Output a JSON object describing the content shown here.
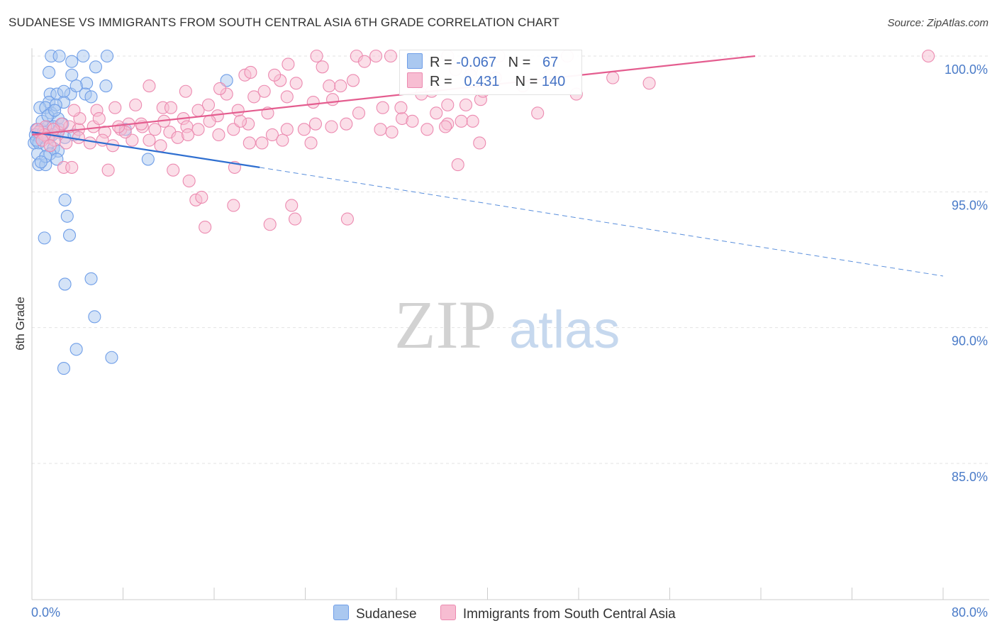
{
  "chart_data": {
    "type": "scatter",
    "title": "SUDANESE VS IMMIGRANTS FROM SOUTH CENTRAL ASIA 6TH GRADE CORRELATION CHART",
    "source": "Source: ZipAtlas.com",
    "ylabel": "6th Grade",
    "xlabel": "",
    "xlim": [
      0,
      80
    ],
    "ylim": [
      80,
      100.8
    ],
    "x_tick_labels": [
      "0.0%",
      "80.0%"
    ],
    "y_tick_labels": [
      "100.0%",
      "95.0%",
      "90.0%",
      "85.0%"
    ],
    "y_ticks": [
      100,
      95,
      90,
      85
    ],
    "grid": true,
    "watermark": "ZIPatlas",
    "legend": {
      "rows": [
        {
          "r_label": "R =",
          "r_value": "-0.067",
          "n_label": "N =",
          "n_value": "67"
        },
        {
          "r_label": "R =",
          "r_value": "0.431",
          "n_label": "N =",
          "n_value": "140"
        }
      ]
    },
    "series": [
      {
        "name": "Sudanese",
        "color": "#6f9ee8",
        "fill": "#aac8f0",
        "trend": {
          "x0": 0,
          "y0": 97.2,
          "x1": 20,
          "y1": 95.9,
          "dash_to_x": 80,
          "dash_to_y": 91.9
        },
        "points": [
          [
            1.7,
            100
          ],
          [
            2.4,
            100
          ],
          [
            4.5,
            100
          ],
          [
            6.6,
            100
          ],
          [
            1.5,
            99.4
          ],
          [
            3.5,
            99.3
          ],
          [
            4.8,
            99
          ],
          [
            6.5,
            98.9
          ],
          [
            17.1,
            99.1
          ],
          [
            1.6,
            98.6
          ],
          [
            2.2,
            98.6
          ],
          [
            3.4,
            98.6
          ],
          [
            4.7,
            98.6
          ],
          [
            5.2,
            98.5
          ],
          [
            1.5,
            98.3
          ],
          [
            2.8,
            98.3
          ],
          [
            0.7,
            98.1
          ],
          [
            1.2,
            98.1
          ],
          [
            1.7,
            97.9
          ],
          [
            2.3,
            97.7
          ],
          [
            0.4,
            97.3
          ],
          [
            0.8,
            97.3
          ],
          [
            1.4,
            97.4
          ],
          [
            1.9,
            97.4
          ],
          [
            2.4,
            97.3
          ],
          [
            0.3,
            97.1
          ],
          [
            0.7,
            97
          ],
          [
            1.1,
            97
          ],
          [
            1.5,
            97
          ],
          [
            0.2,
            96.8
          ],
          [
            0.6,
            96.8
          ],
          [
            1.3,
            96.7
          ],
          [
            1.9,
            96.6
          ],
          [
            2.3,
            96.5
          ],
          [
            0.5,
            96.4
          ],
          [
            1.6,
            96.4
          ],
          [
            2.2,
            96.2
          ],
          [
            0.6,
            96
          ],
          [
            1.2,
            96
          ],
          [
            10.2,
            96.2
          ],
          [
            2.8,
            98.7
          ],
          [
            3.9,
            98.9
          ],
          [
            5.6,
            99.6
          ],
          [
            2.1,
            98.2
          ],
          [
            0.9,
            97.6
          ],
          [
            2.7,
            97.5
          ],
          [
            1.8,
            97.1
          ],
          [
            1,
            97.2
          ],
          [
            0.4,
            96.9
          ],
          [
            1.2,
            96.3
          ],
          [
            2.9,
            97
          ],
          [
            8.2,
            97.3
          ],
          [
            3.7,
            97.1
          ],
          [
            1.4,
            97.8
          ],
          [
            2,
            98
          ],
          [
            2.9,
            94.7
          ],
          [
            3.1,
            94.1
          ],
          [
            3.3,
            93.4
          ],
          [
            1.1,
            93.3
          ],
          [
            2.9,
            91.6
          ],
          [
            5.2,
            91.8
          ],
          [
            5.5,
            90.4
          ],
          [
            3.9,
            89.2
          ],
          [
            7,
            88.9
          ],
          [
            2.8,
            88.5
          ],
          [
            3.5,
            99.8
          ],
          [
            0.8,
            96.1
          ]
        ]
      },
      {
        "name": "Immigrants from South Central Asia",
        "color": "#ec8ab0",
        "fill": "#f7bdd2",
        "trend": {
          "x0": 0,
          "y0": 97.1,
          "x1": 63.5,
          "y1": 100
        },
        "points": [
          [
            25,
            100
          ],
          [
            28.5,
            100
          ],
          [
            31.5,
            100
          ],
          [
            36.5,
            100
          ],
          [
            41,
            100
          ],
          [
            47,
            100
          ],
          [
            78.7,
            100
          ],
          [
            33.5,
            99.5
          ],
          [
            37.2,
            99.5
          ],
          [
            38.6,
            99.5
          ],
          [
            40.7,
            99.2
          ],
          [
            45.5,
            99.3
          ],
          [
            51,
            99.2
          ],
          [
            54.2,
            99
          ],
          [
            18.7,
            99.3
          ],
          [
            21.8,
            99.1
          ],
          [
            23.2,
            99
          ],
          [
            26.1,
            98.9
          ],
          [
            33.7,
            99
          ],
          [
            38.5,
            99.3
          ],
          [
            43.1,
            98.9
          ],
          [
            47.8,
            98.6
          ],
          [
            10.3,
            98.9
          ],
          [
            13.5,
            98.7
          ],
          [
            17.1,
            98.6
          ],
          [
            19.5,
            98.5
          ],
          [
            20.4,
            98.7
          ],
          [
            22.4,
            98.5
          ],
          [
            26.4,
            98.4
          ],
          [
            36.5,
            98.2
          ],
          [
            39.4,
            98.4
          ],
          [
            15.5,
            98.2
          ],
          [
            14.6,
            98
          ],
          [
            11.5,
            98.1
          ],
          [
            9.1,
            98.2
          ],
          [
            7.3,
            98.1
          ],
          [
            5.7,
            98
          ],
          [
            13.3,
            97.7
          ],
          [
            16.3,
            97.8
          ],
          [
            18.1,
            98
          ],
          [
            20.7,
            97.9
          ],
          [
            24.7,
            98.3
          ],
          [
            28.7,
            97.9
          ],
          [
            30.8,
            98.1
          ],
          [
            32.5,
            97.7
          ],
          [
            35.5,
            97.9
          ],
          [
            38.7,
            97.6
          ],
          [
            44.4,
            97.9
          ],
          [
            1.2,
            97.4
          ],
          [
            2.3,
            97.2
          ],
          [
            3.3,
            97.4
          ],
          [
            4.1,
            97.3
          ],
          [
            5.4,
            97.4
          ],
          [
            6.4,
            97.2
          ],
          [
            7.8,
            97.3
          ],
          [
            8.5,
            97.5
          ],
          [
            9.7,
            97.4
          ],
          [
            10.8,
            97.3
          ],
          [
            12.1,
            97.2
          ],
          [
            13.6,
            97.4
          ],
          [
            15.6,
            97.6
          ],
          [
            17.7,
            97.3
          ],
          [
            19,
            97.5
          ],
          [
            21.1,
            97.1
          ],
          [
            22.4,
            97.3
          ],
          [
            24.9,
            97.5
          ],
          [
            26.3,
            97.4
          ],
          [
            27.6,
            97.5
          ],
          [
            30.6,
            97.3
          ],
          [
            31.6,
            97.2
          ],
          [
            33.4,
            97.6
          ],
          [
            34.7,
            97.3
          ],
          [
            36.5,
            97.5
          ],
          [
            0.6,
            97.2
          ],
          [
            1.4,
            97
          ],
          [
            2,
            96.9
          ],
          [
            3,
            96.8
          ],
          [
            4.1,
            97
          ],
          [
            5.1,
            96.8
          ],
          [
            6.2,
            96.9
          ],
          [
            7.1,
            96.7
          ],
          [
            8.8,
            96.9
          ],
          [
            10.3,
            96.9
          ],
          [
            11.3,
            96.7
          ],
          [
            12.8,
            97
          ],
          [
            14.6,
            97.3
          ],
          [
            16.4,
            97.1
          ],
          [
            19.1,
            96.8
          ],
          [
            22,
            96.9
          ],
          [
            24.5,
            96.8
          ],
          [
            2.8,
            95.9
          ],
          [
            3.5,
            95.9
          ],
          [
            6.7,
            95.8
          ],
          [
            12.4,
            95.8
          ],
          [
            13.8,
            95.4
          ],
          [
            17.8,
            95.9
          ],
          [
            14.4,
            94.7
          ],
          [
            14.9,
            94.8
          ],
          [
            17.7,
            94.5
          ],
          [
            22.8,
            94.5
          ],
          [
            15.2,
            93.7
          ],
          [
            20.9,
            93.8
          ],
          [
            23.1,
            94
          ],
          [
            27.7,
            94
          ],
          [
            36.3,
            97.4
          ],
          [
            37.7,
            97.6
          ],
          [
            39.3,
            96.8
          ],
          [
            37.4,
            96
          ],
          [
            38.1,
            98.2
          ],
          [
            39.6,
            98.7
          ],
          [
            29.2,
            99.8
          ],
          [
            30.2,
            100
          ],
          [
            32.4,
            98.1
          ],
          [
            34.2,
            98.6
          ],
          [
            35.1,
            98.7
          ],
          [
            27.1,
            98.9
          ],
          [
            28.2,
            99.1
          ],
          [
            25.5,
            99.6
          ],
          [
            22.5,
            99.7
          ],
          [
            19.2,
            99.4
          ],
          [
            21.3,
            99.3
          ],
          [
            16.5,
            98.8
          ],
          [
            12.2,
            98.1
          ],
          [
            9.6,
            97.5
          ],
          [
            8.2,
            97.2
          ],
          [
            5.9,
            97.7
          ],
          [
            4.2,
            97.7
          ],
          [
            3.7,
            98
          ],
          [
            2.6,
            97.5
          ],
          [
            1.9,
            97.3
          ],
          [
            1.1,
            97.1
          ],
          [
            0.9,
            96.9
          ],
          [
            0.5,
            97.3
          ],
          [
            1.6,
            96.7
          ],
          [
            7.6,
            97.4
          ],
          [
            11.6,
            97.6
          ],
          [
            13.7,
            97.1
          ],
          [
            18.3,
            97.6
          ],
          [
            20.2,
            96.8
          ],
          [
            23.9,
            97.3
          ]
        ]
      }
    ]
  },
  "bottom_legend": [
    {
      "label": "Sudanese",
      "fill": "#aac8f0",
      "stroke": "#6f9ee8"
    },
    {
      "label": "Immigrants from South Central Asia",
      "fill": "#f7bdd2",
      "stroke": "#ec8ab0"
    }
  ]
}
